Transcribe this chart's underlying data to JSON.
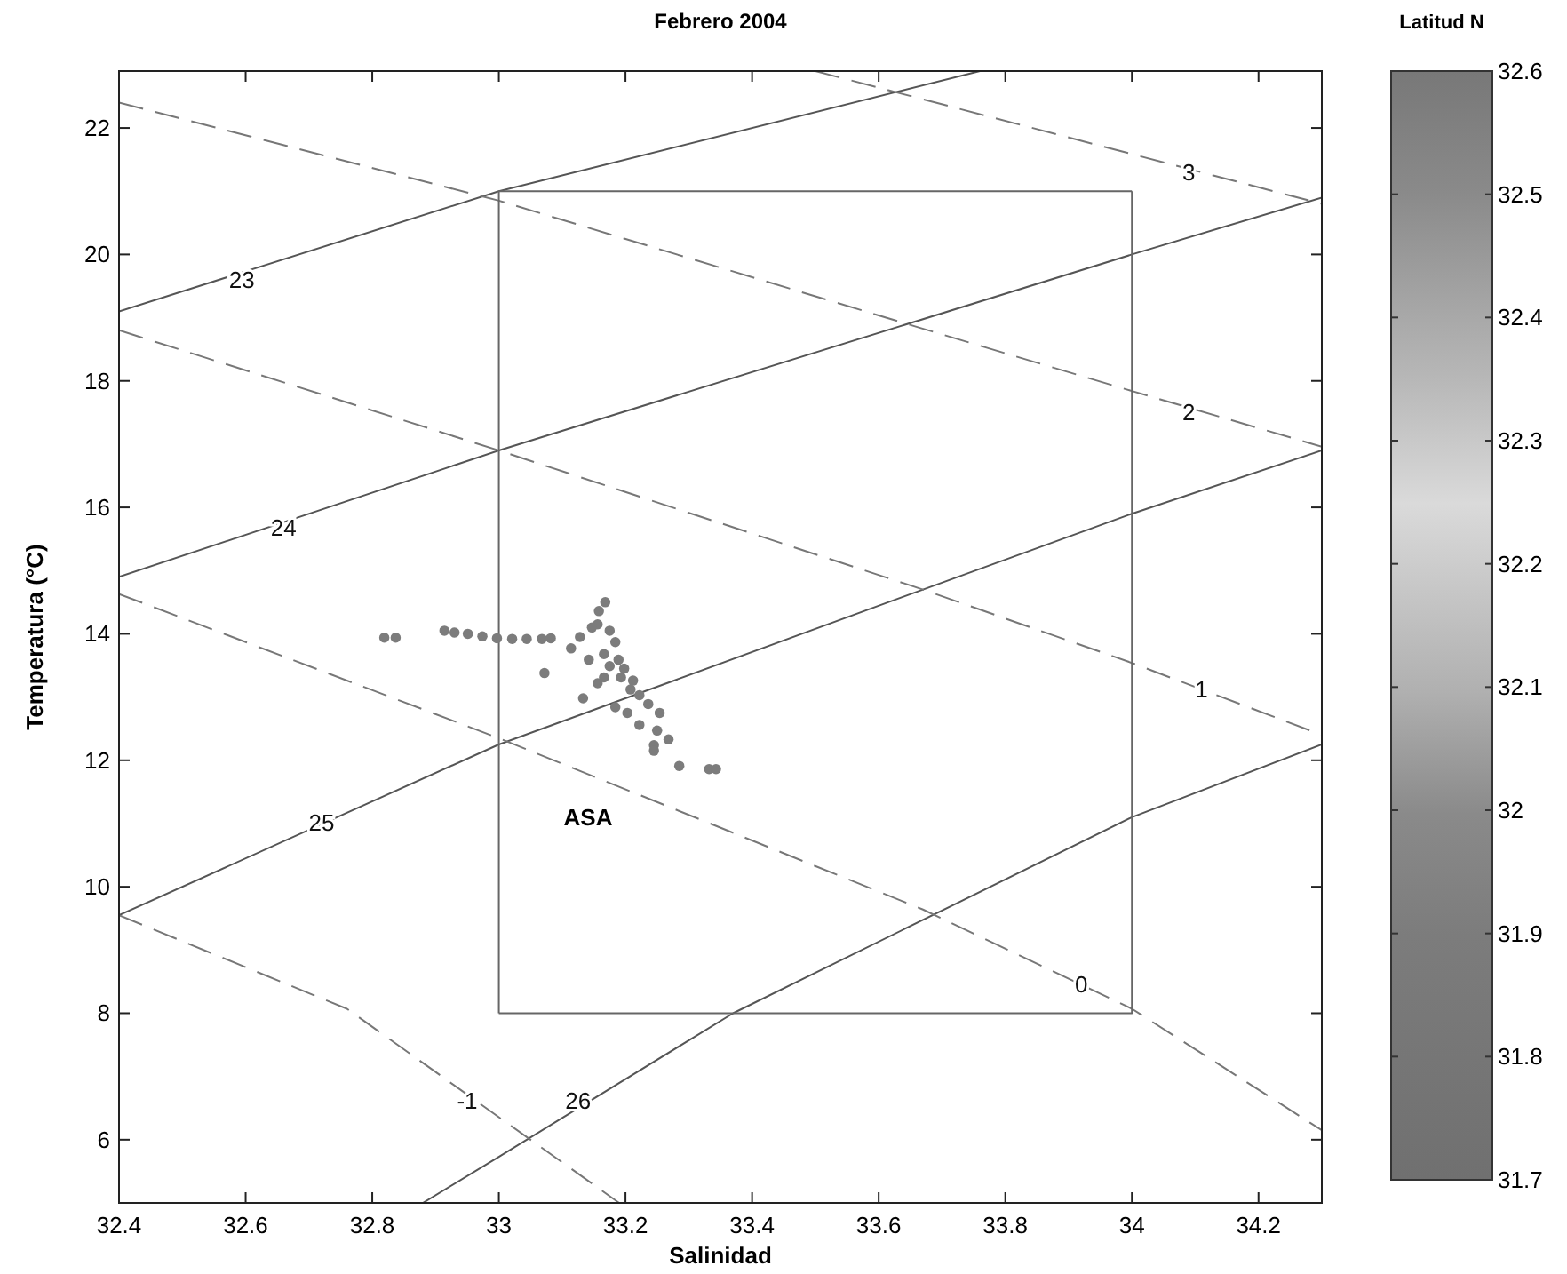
{
  "chart_data": {
    "type": "scatter",
    "title": "Febrero 2004",
    "xlabel": "Salinidad",
    "ylabel": "Temperatura (°C)",
    "clabel": "Latitud N",
    "xlim": [
      32.4,
      34.3
    ],
    "ylim": [
      5,
      22.9
    ],
    "xticks": [
      32.4,
      32.6,
      32.8,
      33,
      33.2,
      33.4,
      33.6,
      33.8,
      34,
      34.2
    ],
    "yticks": [
      6,
      8,
      10,
      12,
      14,
      16,
      18,
      20,
      22
    ],
    "clim": [
      31.7,
      32.6
    ],
    "cticks": [
      31.7,
      31.8,
      31.9,
      32,
      32.1,
      32.2,
      32.3,
      32.4,
      32.5,
      32.6
    ],
    "grid": false,
    "series": [
      {
        "marker": "circle",
        "x": [
          32.819,
          32.837,
          32.914,
          32.93,
          32.951,
          32.974,
          32.997,
          33.021,
          33.044,
          33.068,
          33.082,
          33.072,
          33.168,
          33.158,
          33.156,
          33.128,
          33.114,
          33.166,
          33.175,
          33.193,
          33.208,
          33.222,
          33.156,
          33.133,
          33.184,
          33.203,
          33.236,
          33.254,
          33.222,
          33.25,
          33.268,
          33.245,
          33.245,
          33.285,
          33.332,
          33.343,
          33.147,
          33.175,
          33.184,
          33.142,
          33.189,
          33.198,
          33.212,
          33.166
        ],
        "values": [
          13.94,
          13.94,
          14.05,
          14.02,
          14.0,
          13.96,
          13.93,
          13.92,
          13.92,
          13.92,
          13.93,
          13.38,
          14.5,
          14.36,
          14.15,
          13.95,
          13.77,
          13.68,
          13.49,
          13.31,
          13.12,
          13.03,
          13.22,
          12.98,
          12.84,
          12.75,
          12.89,
          12.75,
          12.56,
          12.47,
          12.33,
          12.24,
          12.15,
          11.91,
          11.86,
          11.86,
          14.1,
          14.05,
          13.87,
          13.59,
          13.59,
          13.45,
          13.26,
          13.31
        ],
        "cvalues": [
          31.9,
          31.9,
          31.9,
          31.9,
          31.9,
          31.9,
          31.9,
          31.9,
          31.9,
          31.9,
          31.9,
          31.9,
          31.9,
          31.9,
          31.9,
          31.9,
          31.9,
          31.9,
          31.9,
          31.9,
          31.9,
          31.9,
          31.9,
          31.9,
          31.9,
          31.9,
          31.9,
          31.9,
          31.9,
          31.9,
          31.9,
          31.9,
          31.9,
          31.9,
          31.9,
          31.9,
          31.9,
          31.9,
          31.9,
          31.9,
          31.9,
          31.9,
          31.9,
          31.9
        ]
      },
      {
        "type": "line",
        "color": "#555555",
        "line_style": "solid",
        "x": [
          32.4,
          33.0,
          33.76
        ],
        "values": [
          19.1,
          21.0,
          22.9
        ]
      },
      {
        "type": "line",
        "color": "#555555",
        "line_style": "solid",
        "x": [
          32.4,
          33.0,
          34.0,
          34.3
        ],
        "values": [
          14.9,
          16.9,
          20.0,
          20.9
        ]
      },
      {
        "type": "line",
        "color": "#555555",
        "line_style": "solid",
        "x": [
          32.4,
          33.0,
          33.67,
          34.0,
          34.3
        ],
        "values": [
          9.55,
          12.25,
          14.7,
          15.9,
          16.9
        ]
      },
      {
        "type": "line",
        "color": "#555555",
        "line_style": "solid",
        "x": [
          32.88,
          33.0,
          33.37,
          34.0,
          34.3
        ],
        "values": [
          5.0,
          5.73,
          8.0,
          11.1,
          12.25
        ]
      },
      {
        "type": "line",
        "color": "#777777",
        "line_style": "dashed",
        "x": [
          32.4,
          32.76,
          33.05,
          33.19
        ],
        "values": [
          9.55,
          8.07,
          6.0,
          5.0
        ]
      },
      {
        "type": "line",
        "color": "#777777",
        "line_style": "dashed",
        "x": [
          32.4,
          33.0,
          33.67,
          34.0,
          34.3
        ],
        "values": [
          14.63,
          12.35,
          9.64,
          8.07,
          6.15
        ]
      },
      {
        "type": "line",
        "color": "#777777",
        "line_style": "dashed",
        "x": [
          32.4,
          33.0,
          33.67,
          34.0,
          34.3
        ],
        "values": [
          18.8,
          16.9,
          14.7,
          13.54,
          12.4
        ]
      },
      {
        "type": "line",
        "color": "#777777",
        "line_style": "dashed",
        "x": [
          32.4,
          33.0,
          33.645,
          34.0,
          34.3
        ],
        "values": [
          22.4,
          20.85,
          18.9,
          17.84,
          16.96
        ]
      },
      {
        "type": "line",
        "color": "#777777",
        "line_style": "dashed",
        "x": [
          33.5,
          34.3
        ],
        "values": [
          22.9,
          20.8
        ]
      },
      {
        "type": "line",
        "color": "#666666",
        "line_style": "solid",
        "x": [
          33,
          33,
          34
        ],
        "values": [
          8,
          21,
          21
        ],
        "marker": "none"
      },
      {
        "type": "line",
        "color": "#666666",
        "line_style": "solid",
        "x": [
          33,
          34,
          34
        ],
        "values": [
          8,
          8,
          21
        ],
        "marker": "none"
      }
    ],
    "annotations": [
      {
        "text": "23",
        "x": 32.594,
        "y": 19.6
      },
      {
        "text": "24",
        "x": 32.66,
        "y": 15.68
      },
      {
        "text": "25",
        "x": 32.72,
        "y": 11.02
      },
      {
        "text": "26",
        "x": 33.125,
        "y": 6.62
      },
      {
        "text": "-1",
        "x": 32.95,
        "y": 6.62
      },
      {
        "text": "0",
        "x": 33.92,
        "y": 8.45
      },
      {
        "text": "1",
        "x": 34.11,
        "y": 13.12
      },
      {
        "text": "2",
        "x": 34.09,
        "y": 17.5
      },
      {
        "text": "3",
        "x": 34.09,
        "y": 21.3
      },
      "ASA"
    ]
  }
}
